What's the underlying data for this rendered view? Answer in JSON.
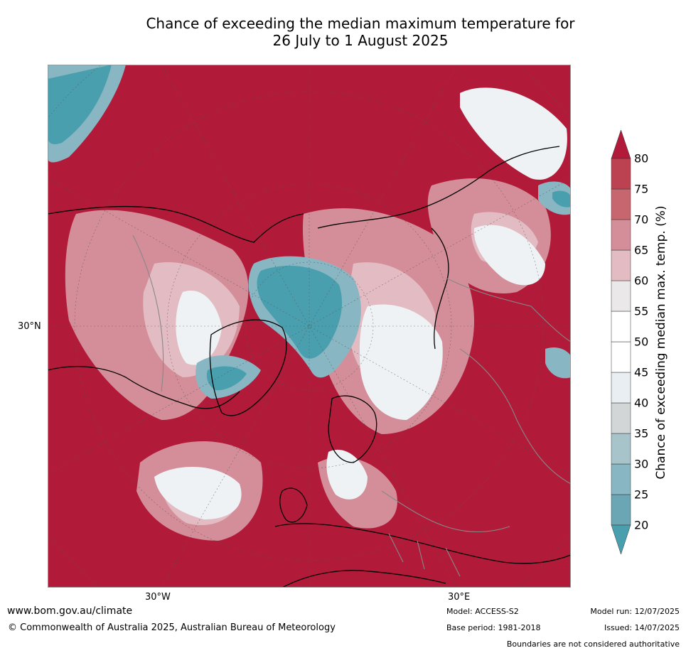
{
  "title": {
    "line1": "Chance of exceeding the median maximum temperature for",
    "line2": "26 July to 1 August 2025"
  },
  "map": {
    "lat_label": "30°N",
    "lon_labels": [
      "30°W",
      "30°E"
    ]
  },
  "colorbar": {
    "label": "Chance of exceeding median max. temp. (%)",
    "ticks": [
      "20",
      "25",
      "30",
      "35",
      "40",
      "45",
      "50",
      "55",
      "60",
      "65",
      "70",
      "75",
      "80"
    ],
    "colors": [
      "#6aa6b4",
      "#88b6c2",
      "#a7c4cb",
      "#d2d6d7",
      "#e8eef1",
      "#ffffff",
      "#ffffff",
      "#eae8e8",
      "#e2bcc2",
      "#d48e99",
      "#c8666f",
      "#bd4251",
      "#b11b39"
    ],
    "low_color": "#4a9fae",
    "high_color": "#b11b39"
  },
  "footer": {
    "url": "www.bom.gov.au/climate",
    "copyright": "© Commonwealth of Australia 2025, Australian Bureau of Meteorology",
    "model": "Model: ACCESS-S2",
    "base_period": "Base period: 1981-2018",
    "model_run": "Model run: 12/07/2025",
    "issued": "Issued: 14/07/2025",
    "boundaries": "Boundaries are not considered authoritative"
  }
}
